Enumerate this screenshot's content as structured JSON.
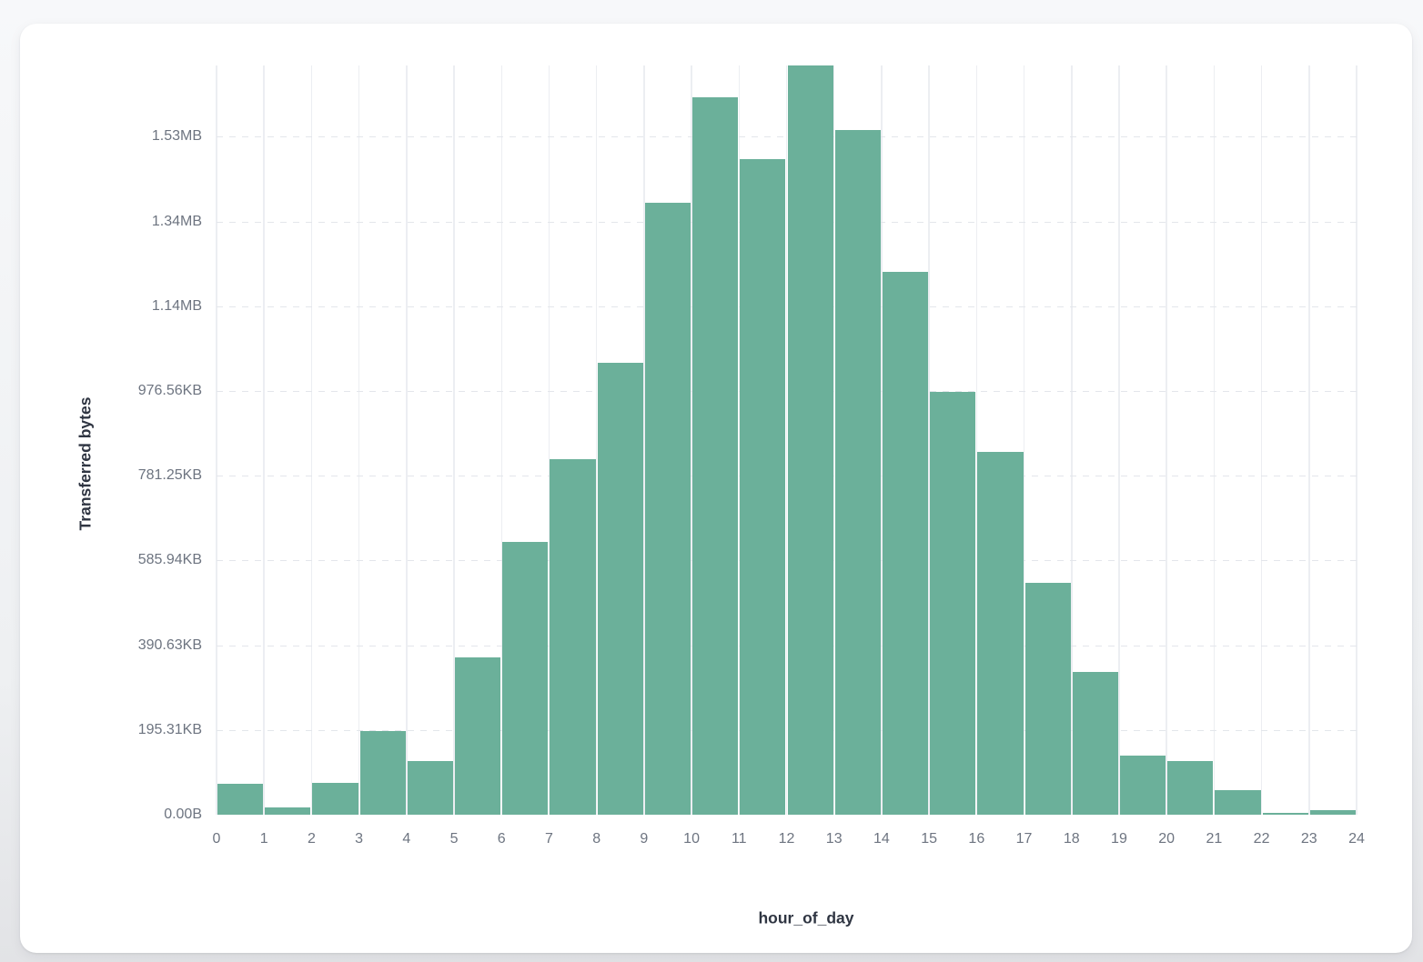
{
  "page": {
    "background_top": "#f7f8fa",
    "background_bottom": "#e2e3e6",
    "card_background": "#ffffff"
  },
  "chart_data": {
    "type": "bar",
    "title": "",
    "xlabel": "hour_of_day",
    "ylabel": "Transferred bytes",
    "bar_color": "#6bb09a",
    "grid": true,
    "legend": "none",
    "x_ticks": [
      "0",
      "1",
      "2",
      "3",
      "4",
      "5",
      "6",
      "7",
      "8",
      "9",
      "10",
      "11",
      "12",
      "13",
      "14",
      "15",
      "16",
      "17",
      "18",
      "19",
      "20",
      "21",
      "22",
      "23",
      "24"
    ],
    "y_ticks": [
      {
        "label": "0.00B",
        "bytes": 0
      },
      {
        "label": "195.31KB",
        "bytes": 200000
      },
      {
        "label": "390.63KB",
        "bytes": 400000
      },
      {
        "label": "585.94KB",
        "bytes": 600000
      },
      {
        "label": "781.25KB",
        "bytes": 800000
      },
      {
        "label": "976.56KB",
        "bytes": 1000000
      },
      {
        "label": "1.14MB",
        "bytes": 1200000
      },
      {
        "label": "1.34MB",
        "bytes": 1400000
      },
      {
        "label": "1.53MB",
        "bytes": 1600000
      }
    ],
    "categories": [
      0,
      1,
      2,
      3,
      4,
      5,
      6,
      7,
      8,
      9,
      10,
      11,
      12,
      13,
      14,
      15,
      16,
      17,
      18,
      19,
      20,
      21,
      22,
      23
    ],
    "values_bytes": [
      72000,
      16500,
      76000,
      197000,
      126000,
      371000,
      643000,
      840000,
      1067000,
      1445000,
      1693000,
      1546000,
      1768000,
      1616000,
      1282000,
      997000,
      857000,
      547000,
      336000,
      139000,
      126000,
      58000,
      4000,
      11000
    ],
    "xlim": [
      0,
      24
    ],
    "ylim_bytes": [
      0,
      1768000
    ]
  }
}
